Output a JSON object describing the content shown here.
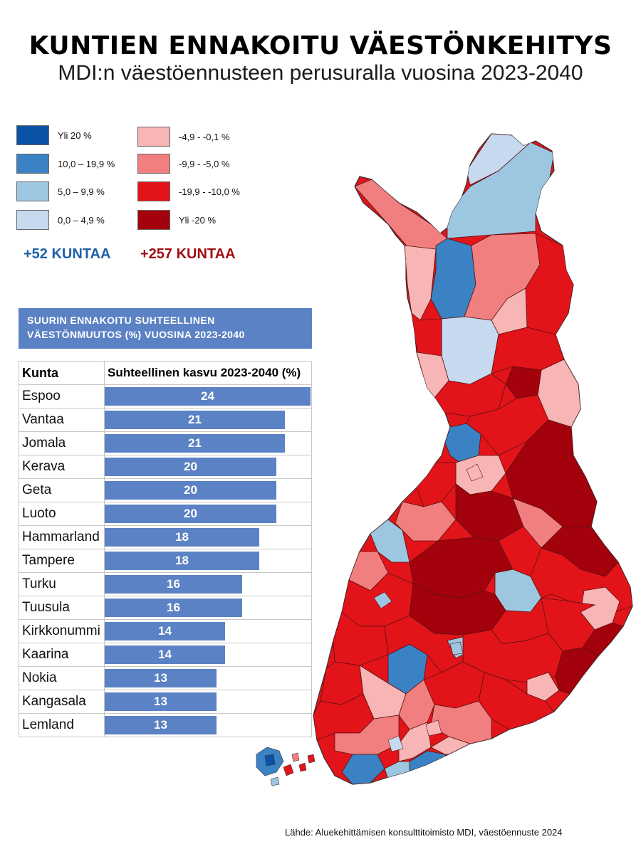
{
  "title": "KUNTIEN ENNAKOITU VÄESTÖNKEHITYS",
  "subtitle": "MDI:n väestöennusteen perusuralla vuosina 2023-2040",
  "colors": {
    "yli20": "#0a52a6",
    "c10_19": "#3a82c4",
    "c5_9": "#9dc7e0",
    "c0_4": "#c6d9ef",
    "n0_4": "#f8b5b5",
    "n5_9": "#f27f7f",
    "n10_19": "#e2141a",
    "nyli20": "#a3020c",
    "bar": "#5b82c4",
    "growth_text": "#1e5fa8",
    "decline_text": "#a10d12"
  },
  "legend": [
    {
      "label": "Yli 20 %",
      "color": "#0a52a6"
    },
    {
      "label": "10,0 – 19,9 %",
      "color": "#3a82c4"
    },
    {
      "label": "5,0 – 9,9 %",
      "color": "#9dc7e0"
    },
    {
      "label": "0,0   – 4,9 %",
      "color": "#c6d9ef"
    },
    {
      "label": "-4,9 - -0,1 %",
      "color": "#f8b5b5"
    },
    {
      "label": "-9,9 - -5,0 %",
      "color": "#f27f7f"
    },
    {
      "label": "-19,9 - -10,0 %",
      "color": "#e2141a"
    },
    {
      "label": "Yli -20 %",
      "color": "#a3020c"
    }
  ],
  "counts": {
    "growth": "+52 KUNTAA",
    "decline": "+257 KUNTAA"
  },
  "table": {
    "heading_line1": "SUURIN  ENNAKOITU SUHTEELLINEN",
    "heading_line2": "VÄESTÖNMUUTOS (%) VUOSINA 2023-2040",
    "col_name": "Kunta",
    "col_value": "Suhteellinen kasvu 2023-2040 (%)",
    "max_value": 24,
    "rows": [
      {
        "name": "Espoo",
        "value": "24",
        "num": 24
      },
      {
        "name": "Vantaa",
        "value": "21",
        "num": 21
      },
      {
        "name": "Jomala",
        "value": "21",
        "num": 21
      },
      {
        "name": "Kerava",
        "value": "20",
        "num": 20
      },
      {
        "name": "Geta",
        "value": "20",
        "num": 20
      },
      {
        "name": "Luoto",
        "value": "20",
        "num": 20
      },
      {
        "name": "Hammarland",
        "value": "18",
        "num": 18
      },
      {
        "name": "Tampere",
        "value": "18",
        "num": 18
      },
      {
        "name": "Turku",
        "value": "16",
        "num": 16
      },
      {
        "name": "Tuusula",
        "value": "16",
        "num": 16
      },
      {
        "name": "Kirkkonummi",
        "value": "14",
        "num": 14
      },
      {
        "name": "Kaarina",
        "value": "14",
        "num": 14
      },
      {
        "name": "Nokia",
        "value": "13",
        "num": 13
      },
      {
        "name": "Kangasala",
        "value": "13",
        "num": 13
      },
      {
        "name": "Lemland",
        "value": "13",
        "num": 13
      }
    ]
  },
  "source": "Lähde: Aluekehittämisen konsulttitoimisto MDI, väestöennuste 2024"
}
